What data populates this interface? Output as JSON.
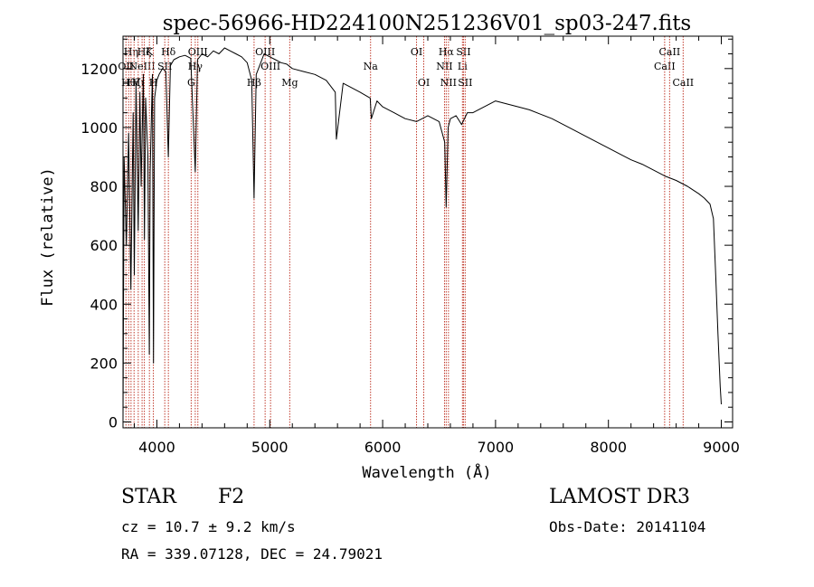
{
  "chart_data": {
    "type": "line",
    "title": "spec-56966-HD224100N251236V01_sp03-247.fits",
    "xlabel": "Wavelength (Å)",
    "ylabel": "Flux (relative)",
    "xlim": [
      3700,
      9100
    ],
    "ylim": [
      -20,
      1310
    ],
    "xticks": [
      4000,
      5000,
      6000,
      7000,
      8000,
      9000
    ],
    "yticks": [
      0,
      200,
      400,
      600,
      800,
      1000,
      1200
    ],
    "series": [
      {
        "name": "spectrum",
        "x": [
          3700,
          3710,
          3730,
          3750,
          3770,
          3790,
          3800,
          3815,
          3835,
          3850,
          3860,
          3880,
          3890,
          3900,
          3920,
          3933,
          3940,
          3960,
          3970,
          3980,
          4000,
          4020,
          4050,
          4080,
          4101,
          4120,
          4150,
          4200,
          4250,
          4300,
          4340,
          4360,
          4400,
          4450,
          4500,
          4550,
          4600,
          4650,
          4700,
          4750,
          4800,
          4840,
          4861,
          4880,
          4920,
          4950,
          5000,
          5050,
          5100,
          5150,
          5200,
          5300,
          5400,
          5500,
          5580,
          5590,
          5650,
          5700,
          5800,
          5890,
          5900,
          5950,
          6000,
          6100,
          6200,
          6300,
          6400,
          6500,
          6550,
          6563,
          6580,
          6600,
          6650,
          6700,
          6750,
          6800,
          6900,
          7000,
          7100,
          7200,
          7300,
          7400,
          7500,
          7600,
          7700,
          7800,
          7900,
          8000,
          8100,
          8200,
          8300,
          8400,
          8500,
          8600,
          8700,
          8800,
          8850,
          8900,
          8930,
          8950,
          8970,
          8990,
          9000
        ],
        "y": [
          0,
          900,
          600,
          980,
          450,
          1050,
          500,
          1150,
          650,
          1120,
          800,
          1180,
          620,
          1100,
          900,
          230,
          850,
          1180,
          200,
          1100,
          1160,
          1180,
          1200,
          1190,
          900,
          1210,
          1230,
          1240,
          1245,
          1235,
          850,
          1230,
          1250,
          1240,
          1260,
          1250,
          1270,
          1260,
          1250,
          1240,
          1220,
          1160,
          760,
          1180,
          1220,
          1250,
          1240,
          1230,
          1220,
          1215,
          1200,
          1190,
          1180,
          1160,
          1120,
          960,
          1150,
          1140,
          1120,
          1100,
          1030,
          1090,
          1070,
          1050,
          1030,
          1020,
          1040,
          1020,
          950,
          730,
          1000,
          1030,
          1040,
          1010,
          1050,
          1050,
          1070,
          1090,
          1080,
          1070,
          1060,
          1045,
          1030,
          1010,
          990,
          970,
          950,
          930,
          910,
          890,
          875,
          855,
          835,
          820,
          800,
          775,
          760,
          740,
          690,
          500,
          300,
          120,
          60
        ]
      }
    ],
    "line_markers": [
      {
        "wavelength": 3726,
        "label": "OII",
        "row": 2
      },
      {
        "wavelength": 3750,
        "label": "Hθ",
        "row": 3
      },
      {
        "wavelength": 3771,
        "label": "Hη",
        "row": 1
      },
      {
        "wavelength": 3798,
        "label": "Hζ",
        "row": 3
      },
      {
        "wavelength": 3835,
        "label": "Hι",
        "row": 3
      },
      {
        "wavelength": 3869,
        "label": "NeIII",
        "row": 2
      },
      {
        "wavelength": 3889,
        "label": "Hζ",
        "row": 1
      },
      {
        "wavelength": 3934,
        "label": "K",
        "row": 1
      },
      {
        "wavelength": 3969,
        "label": "H",
        "row": 3
      },
      {
        "wavelength": 4070,
        "label": "SII",
        "row": 2
      },
      {
        "wavelength": 4102,
        "label": "Hδ",
        "row": 1
      },
      {
        "wavelength": 4304,
        "label": "G",
        "row": 3
      },
      {
        "wavelength": 4340,
        "label": "Hγ",
        "row": 2
      },
      {
        "wavelength": 4363,
        "label": "OIII",
        "row": 1
      },
      {
        "wavelength": 4861,
        "label": "Hβ",
        "row": 3
      },
      {
        "wavelength": 4959,
        "label": "OIII",
        "row": 1
      },
      {
        "wavelength": 5007,
        "label": "OIII",
        "row": 2
      },
      {
        "wavelength": 5177,
        "label": "Mg",
        "row": 3
      },
      {
        "wavelength": 5893,
        "label": "Na",
        "row": 2
      },
      {
        "wavelength": 6300,
        "label": "OI",
        "row": 1
      },
      {
        "wavelength": 6364,
        "label": "OI",
        "row": 3
      },
      {
        "wavelength": 6548,
        "label": "NII",
        "row": 2
      },
      {
        "wavelength": 6563,
        "label": "Hα",
        "row": 1
      },
      {
        "wavelength": 6583,
        "label": "NII",
        "row": 3
      },
      {
        "wavelength": 6707,
        "label": "Li",
        "row": 2
      },
      {
        "wavelength": 6716,
        "label": "SII",
        "row": 1
      },
      {
        "wavelength": 6731,
        "label": "SII",
        "row": 3
      },
      {
        "wavelength": 8498,
        "label": "CaII",
        "row": 2
      },
      {
        "wavelength": 8542,
        "label": "CaII",
        "row": 1
      },
      {
        "wavelength": 8662,
        "label": "CaII",
        "row": 3
      }
    ],
    "colors": {
      "spectrum": "#000000",
      "marker": "#c0392b",
      "axes": "#000000"
    }
  },
  "info": {
    "class": "STAR",
    "subclass": "F2",
    "survey": "LAMOST DR3",
    "cz": "cz = 10.7 ± 9.2 km/s",
    "obs_date": "Obs-Date: 20141104",
    "radec": "RA = 339.07128, DEC =  24.79021"
  }
}
